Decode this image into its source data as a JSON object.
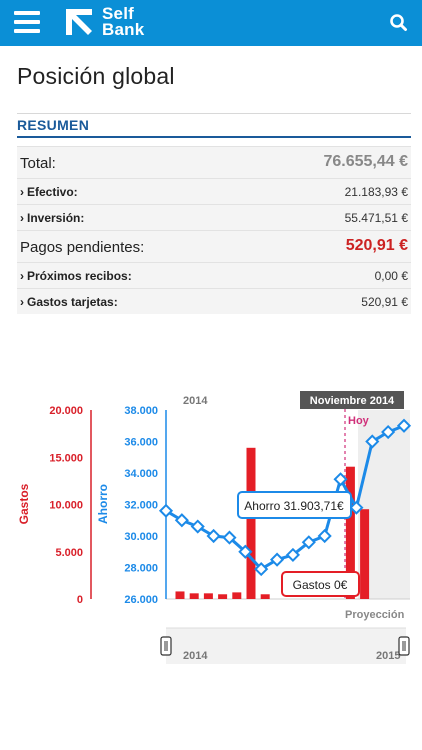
{
  "app": {
    "brand_line1": "Self",
    "brand_line2": "Bank"
  },
  "page": {
    "title": "Posición global",
    "tab": "RESUMEN"
  },
  "summary": {
    "total": {
      "label": "Total:",
      "value": "76.655,44 €",
      "color": "#888888"
    },
    "efectivo": {
      "label": "Efectivo:",
      "value": "21.183,93 €"
    },
    "inversion": {
      "label": "Inversión:",
      "value": "55.471,51 €"
    },
    "pagos": {
      "label": "Pagos pendientes:",
      "value": "520,91 €",
      "color": "#cc2222"
    },
    "recibos": {
      "label": "Próximos recibos:",
      "value": "0,00 €"
    },
    "tarjetas": {
      "label": "Gastos tarjetas:",
      "value": "520,91 €"
    }
  },
  "chart_data": {
    "type": "bar",
    "year_label": "2014",
    "month_badge": "Noviembre 2014",
    "hoy_label": "Hoy",
    "proyeccion_label": "Proyección",
    "gastos_axis": {
      "label": "Gastos",
      "ticks": [
        "20.000",
        "15.000",
        "10.000",
        "5.000",
        "0"
      ],
      "min": 0,
      "max": 20000,
      "color": "#d9202a"
    },
    "ahorro_axis": {
      "label": "Ahorro",
      "ticks": [
        "38.000",
        "36.000",
        "34.000",
        "32.000",
        "30.000",
        "28.000",
        "26.000"
      ],
      "min": 26000,
      "max": 38000,
      "color": "#1c8ae8"
    },
    "series": [
      {
        "name": "Gastos",
        "values": [
          800,
          600,
          600,
          500,
          700,
          16000,
          500,
          0,
          0,
          0,
          0,
          0,
          14000,
          9500
        ],
        "color": "#e41e26"
      },
      {
        "name": "Ahorro",
        "values": [
          31600,
          31000,
          30600,
          30000,
          29900,
          29000,
          27900,
          28500,
          28800,
          29600,
          30000,
          33600,
          31800,
          36000,
          36600,
          37000
        ],
        "color": "#1c8ae8"
      }
    ],
    "tooltip_ahorro": "Ahorro 31.903,71€",
    "tooltip_gastos": "Gastos 0€",
    "navigator": {
      "start_label": "2014",
      "end_label": "2015"
    }
  }
}
